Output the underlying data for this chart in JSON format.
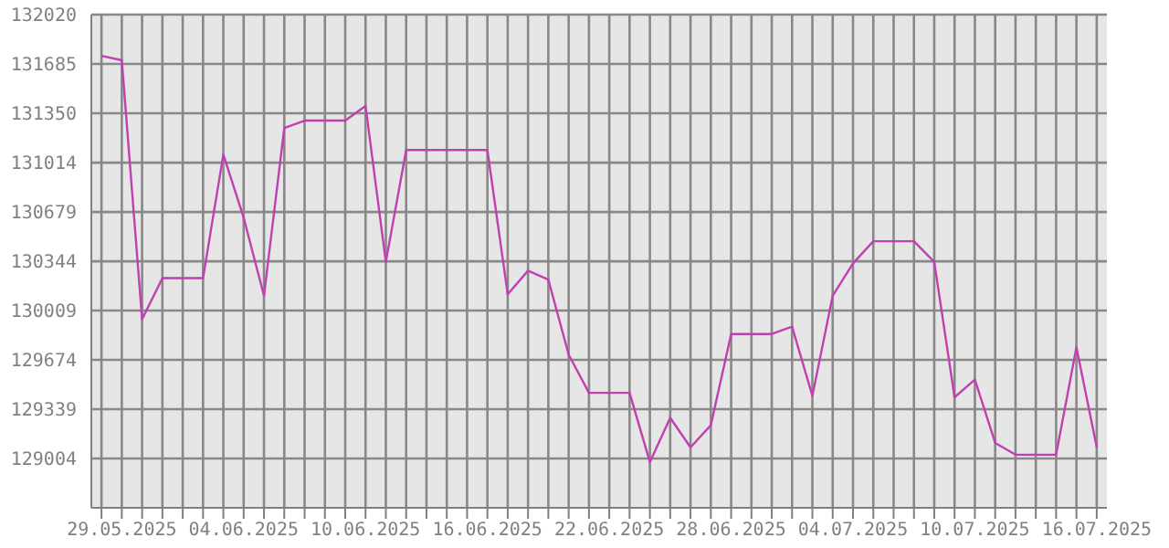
{
  "chart_data": {
    "type": "line",
    "x": [
      "2025-05-28",
      "2025-05-29",
      "2025-05-30",
      "2025-05-31",
      "2025-06-01",
      "2025-06-02",
      "2025-06-03",
      "2025-06-04",
      "2025-06-05",
      "2025-06-06",
      "2025-06-07",
      "2025-06-08",
      "2025-06-09",
      "2025-06-10",
      "2025-06-11",
      "2025-06-12",
      "2025-06-13",
      "2025-06-14",
      "2025-06-15",
      "2025-06-16",
      "2025-06-17",
      "2025-06-18",
      "2025-06-19",
      "2025-06-20",
      "2025-06-21",
      "2025-06-22",
      "2025-06-23",
      "2025-06-24",
      "2025-06-25",
      "2025-06-26",
      "2025-06-27",
      "2025-06-28",
      "2025-06-29",
      "2025-06-30",
      "2025-07-01",
      "2025-07-02",
      "2025-07-03",
      "2025-07-04",
      "2025-07-05",
      "2025-07-06",
      "2025-07-07",
      "2025-07-08",
      "2025-07-09",
      "2025-07-10",
      "2025-07-11",
      "2025-07-12",
      "2025-07-13",
      "2025-07-14",
      "2025-07-15",
      "2025-07-16"
    ],
    "series": [
      {
        "color": "#c040b0",
        "values": [
          131740,
          131710,
          129950,
          130230,
          130230,
          130230,
          131070,
          130640,
          130110,
          131250,
          131300,
          131300,
          131300,
          131400,
          130340,
          131100,
          131100,
          131100,
          131100,
          131100,
          130120,
          130280,
          130220,
          129710,
          129450,
          129450,
          129450,
          128980,
          129280,
          129080,
          129230,
          129850,
          129850,
          129850,
          129900,
          129430,
          130110,
          130330,
          130480,
          130480,
          130480,
          130340,
          129420,
          129540,
          129110,
          129030,
          129030,
          129030,
          129760,
          129080
        ]
      }
    ],
    "xlim": [
      "2025-05-27T12:00",
      "2025-07-16T12:00"
    ],
    "xticks": [
      {
        "value": "2025-05-28",
        "label": null
      },
      {
        "value": "2025-05-29",
        "label": "29.05.2025"
      },
      {
        "value": "2025-05-30",
        "label": null
      },
      {
        "value": "2025-05-31",
        "label": null
      },
      {
        "value": "2025-06-01",
        "label": null
      },
      {
        "value": "2025-06-02",
        "label": null
      },
      {
        "value": "2025-06-03",
        "label": null
      },
      {
        "value": "2025-06-04",
        "label": "04.06.2025"
      },
      {
        "value": "2025-06-05",
        "label": null
      },
      {
        "value": "2025-06-06",
        "label": null
      },
      {
        "value": "2025-06-07",
        "label": null
      },
      {
        "value": "2025-06-08",
        "label": null
      },
      {
        "value": "2025-06-09",
        "label": null
      },
      {
        "value": "2025-06-10",
        "label": "10.06.2025"
      },
      {
        "value": "2025-06-11",
        "label": null
      },
      {
        "value": "2025-06-12",
        "label": null
      },
      {
        "value": "2025-06-13",
        "label": null
      },
      {
        "value": "2025-06-14",
        "label": null
      },
      {
        "value": "2025-06-15",
        "label": null
      },
      {
        "value": "2025-06-16",
        "label": "16.06.2025"
      },
      {
        "value": "2025-06-17",
        "label": null
      },
      {
        "value": "2025-06-18",
        "label": null
      },
      {
        "value": "2025-06-19",
        "label": null
      },
      {
        "value": "2025-06-20",
        "label": null
      },
      {
        "value": "2025-06-21",
        "label": null
      },
      {
        "value": "2025-06-22",
        "label": "22.06.2025"
      },
      {
        "value": "2025-06-23",
        "label": null
      },
      {
        "value": "2025-06-24",
        "label": null
      },
      {
        "value": "2025-06-25",
        "label": null
      },
      {
        "value": "2025-06-26",
        "label": null
      },
      {
        "value": "2025-06-27",
        "label": null
      },
      {
        "value": "2025-06-28",
        "label": "28.06.2025"
      },
      {
        "value": "2025-06-29",
        "label": null
      },
      {
        "value": "2025-06-30",
        "label": null
      },
      {
        "value": "2025-07-01",
        "label": null
      },
      {
        "value": "2025-07-02",
        "label": null
      },
      {
        "value": "2025-07-03",
        "label": null
      },
      {
        "value": "2025-07-04",
        "label": "04.07.2025"
      },
      {
        "value": "2025-07-05",
        "label": null
      },
      {
        "value": "2025-07-06",
        "label": null
      },
      {
        "value": "2025-07-07",
        "label": null
      },
      {
        "value": "2025-07-08",
        "label": null
      },
      {
        "value": "2025-07-09",
        "label": null
      },
      {
        "value": "2025-07-10",
        "label": "10.07.2025"
      },
      {
        "value": "2025-07-11",
        "label": null
      },
      {
        "value": "2025-07-12",
        "label": null
      },
      {
        "value": "2025-07-13",
        "label": null
      },
      {
        "value": "2025-07-14",
        "label": null
      },
      {
        "value": "2025-07-15",
        "label": null
      },
      {
        "value": "2025-07-16",
        "label": "16.07.2025"
      }
    ],
    "ylim": [
      128669,
      132020
    ],
    "yticks": [
      129004,
      129339,
      129674,
      130009,
      130344,
      130679,
      131014,
      131350,
      131685,
      132020
    ],
    "grid": true,
    "legend": false,
    "marker": "none",
    "line_style": "solid"
  }
}
